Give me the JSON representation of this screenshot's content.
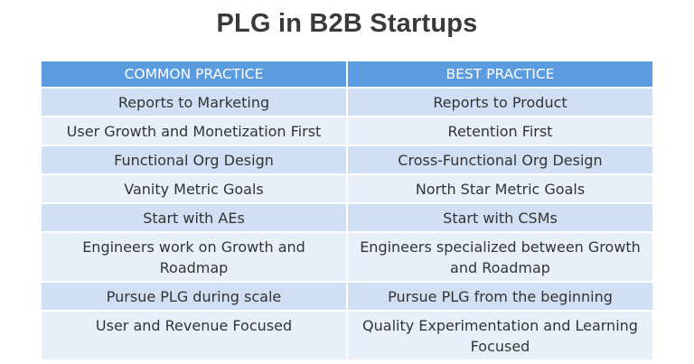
{
  "title": "PLG in B2B Startups",
  "colors": {
    "header_bg": "#5b9be0",
    "row_band_dark": "#d0dff3",
    "row_band_light": "#e9eff9",
    "title_text": "#3a3a3a"
  },
  "table": {
    "headers": [
      "COMMON PRACTICE",
      "BEST PRACTICE"
    ],
    "rows": [
      [
        "Reports to Marketing",
        "Reports to Product"
      ],
      [
        "User Growth and Monetization First",
        "Retention First"
      ],
      [
        "Functional Org Design",
        "Cross-Functional Org Design"
      ],
      [
        "Vanity Metric Goals",
        "North Star Metric Goals"
      ],
      [
        "Start with AEs",
        "Start with CSMs"
      ],
      [
        "Engineers work on Growth and Roadmap",
        "Engineers specialized between Growth and Roadmap"
      ],
      [
        "Pursue PLG during scale",
        "Pursue PLG from the beginning"
      ],
      [
        "User and Revenue Focused",
        "Quality Experimentation and Learning Focused"
      ]
    ]
  }
}
